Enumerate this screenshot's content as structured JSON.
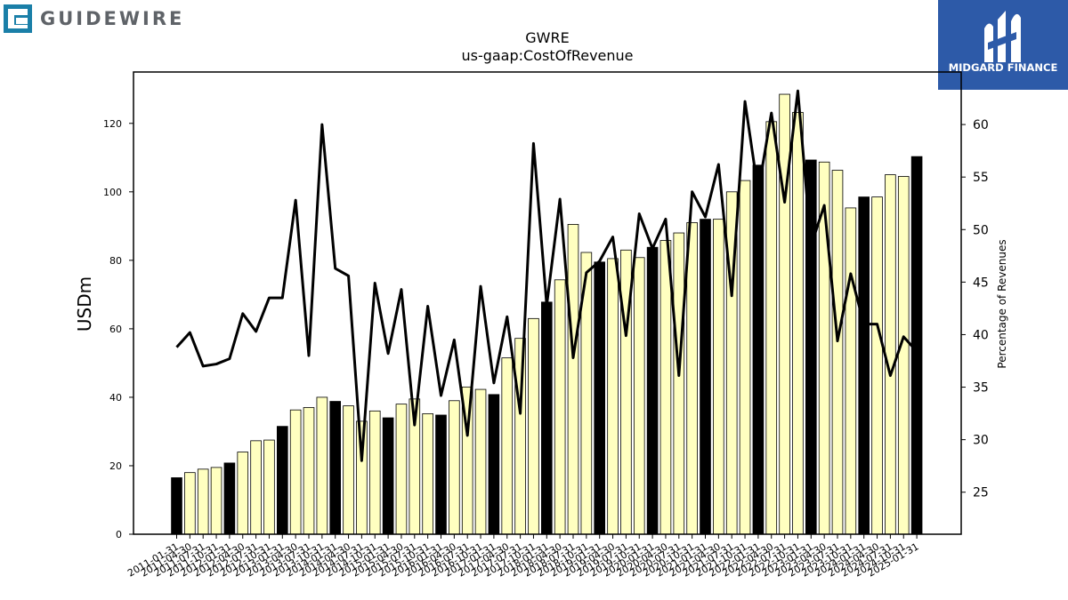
{
  "brand": {
    "left_logo_text": "GUIDEWIRE",
    "right_logo_text": "MIDGARD FINANCE"
  },
  "chart_data": {
    "type": "bar",
    "title": "GWRE",
    "subtitle": "us-gaap:CostOfRevenue",
    "ylabel": "USDm",
    "y2label": "Percentage of Revenues",
    "ylim": [
      0,
      135
    ],
    "y2lim": [
      21,
      65
    ],
    "yticks": [
      0,
      20,
      40,
      60,
      80,
      100,
      120
    ],
    "y2ticks": [
      25,
      30,
      35,
      40,
      45,
      50,
      55,
      60
    ],
    "grid": false,
    "colors": {
      "annual_bar": "#000000",
      "quarter_bar": "#ffffc0",
      "line": "#000000"
    },
    "categories": [
      "2011-01-31",
      "2011-04-30",
      "2011-07-31",
      "2011-10-31",
      "2012-01-31",
      "2012-04-30",
      "2012-07-31",
      "2012-10-31",
      "2013-01-31",
      "2013-04-30",
      "2013-07-31",
      "2013-10-31",
      "2014-01-31",
      "2014-04-30",
      "2014-07-31",
      "2014-10-31",
      "2015-01-31",
      "2015-04-30",
      "2015-07-31",
      "2015-10-31",
      "2016-01-31",
      "2016-04-30",
      "2016-07-31",
      "2016-10-31",
      "2017-01-31",
      "2017-04-30",
      "2017-07-31",
      "2017-10-31",
      "2018-01-31",
      "2018-04-30",
      "2018-07-31",
      "2018-10-31",
      "2019-01-31",
      "2019-04-30",
      "2019-07-31",
      "2019-10-31",
      "2020-01-31",
      "2020-04-30",
      "2020-07-31",
      "2020-10-31",
      "2021-01-31",
      "2021-04-30",
      "2021-07-31",
      "2021-10-31",
      "2022-01-31",
      "2022-04-30",
      "2022-07-31",
      "2022-10-31",
      "2023-01-31",
      "2023-04-30",
      "2023-07-31",
      "2023-10-31",
      "2024-01-31",
      "2024-04-30",
      "2024-07-31",
      "2024-10-31",
      "2025-01-31"
    ],
    "series": [
      {
        "name": "us-gaap:CostOfRevenue",
        "kind": "bar",
        "values": [
          16.5,
          18,
          19,
          19.5,
          20.8,
          24,
          27.3,
          27.5,
          31.5,
          36.3,
          37,
          40,
          38.8,
          37.5,
          33,
          36,
          34,
          38,
          39.5,
          35.2,
          34.8,
          39,
          43,
          42.3,
          40.8,
          51.5,
          57.2,
          63,
          67.8,
          74.3,
          90.5,
          82.3,
          79.5,
          80.5,
          83,
          80.8,
          83.8,
          85.8,
          88,
          91,
          92,
          92,
          100,
          103.3,
          107.8,
          120.5,
          128.5,
          123.2,
          109.3,
          108.7,
          106.3,
          95.3,
          98.5,
          98.5,
          105,
          104.5,
          110.3
        ],
        "annual": [
          true,
          false,
          false,
          false,
          true,
          false,
          false,
          false,
          true,
          false,
          false,
          false,
          true,
          false,
          false,
          false,
          true,
          false,
          false,
          false,
          true,
          false,
          false,
          false,
          true,
          false,
          false,
          false,
          true,
          false,
          false,
          false,
          true,
          false,
          false,
          false,
          true,
          false,
          false,
          false,
          true,
          false,
          false,
          false,
          true,
          false,
          false,
          false,
          true,
          false,
          false,
          false,
          true,
          false,
          false,
          false,
          true
        ]
      },
      {
        "name": "Percentage of Revenues",
        "kind": "line",
        "axis": "right",
        "values": [
          38.8,
          40.2,
          37,
          37.2,
          37.7,
          42,
          40.3,
          43.5,
          43.5,
          52.8,
          38,
          60,
          46.3,
          45.6,
          28,
          44.9,
          38.2,
          44.3,
          31.4,
          42.7,
          34.2,
          39.5,
          30.4,
          44.6,
          35.4,
          41.7,
          32.5,
          58.2,
          42.8,
          52.9,
          37.8,
          45.9,
          47,
          49.3,
          39.9,
          51.5,
          48.2,
          51,
          36.1,
          53.6,
          51.2,
          56.2,
          43.7,
          62.2,
          53.6,
          61.1,
          52.6,
          63.2,
          48.5,
          52.3,
          39.4,
          45.8,
          41,
          41,
          36.1,
          39.8,
          38.4
        ]
      }
    ]
  }
}
